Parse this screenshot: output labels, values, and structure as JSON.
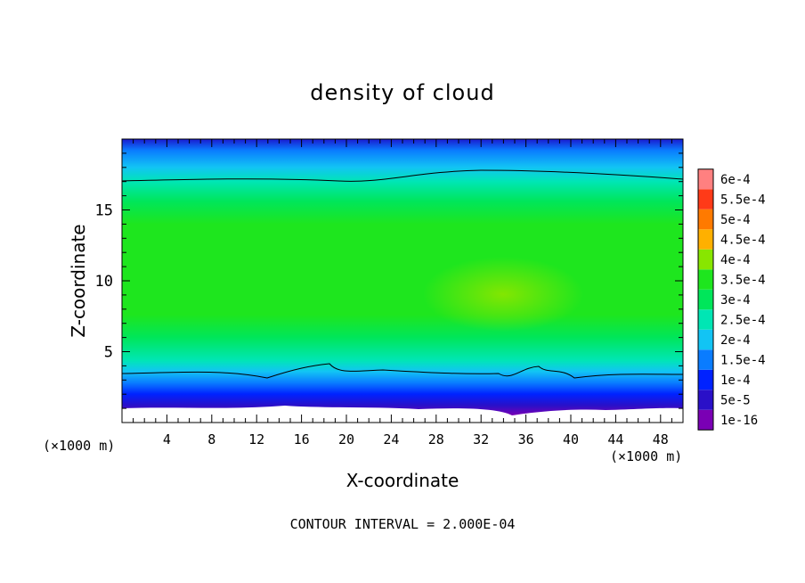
{
  "chart_data": {
    "type": "heatmap",
    "title": "density of cloud",
    "xlabel": "X-coordinate",
    "ylabel": "Z-coordinate",
    "x_unit": "(×1000 m)",
    "xlim": [
      0,
      50
    ],
    "ylim": [
      0,
      20
    ],
    "x_ticks": [
      4,
      8,
      12,
      16,
      20,
      24,
      28,
      32,
      36,
      40,
      44,
      48
    ],
    "y_ticks": [
      5,
      10,
      15
    ],
    "colorbar": {
      "levels": [
        "1e-16",
        "5e-5",
        "1e-4",
        "1.5e-4",
        "2e-4",
        "2.5e-4",
        "3e-4",
        "3.5e-4",
        "4e-4",
        "4.5e-4",
        "5e-4",
        "5.5e-4",
        "6e-4"
      ],
      "colors": [
        "#7a00b4",
        "#2a10c8",
        "#0022ff",
        "#0a7cff",
        "#12c4f4",
        "#00e6b4",
        "#00e65a",
        "#1ee61e",
        "#88e600",
        "#ffb000",
        "#ff7a00",
        "#ff3a18",
        "#ff8080"
      ]
    },
    "footer": "CONTOUR INTERVAL = 2.000E-04"
  }
}
